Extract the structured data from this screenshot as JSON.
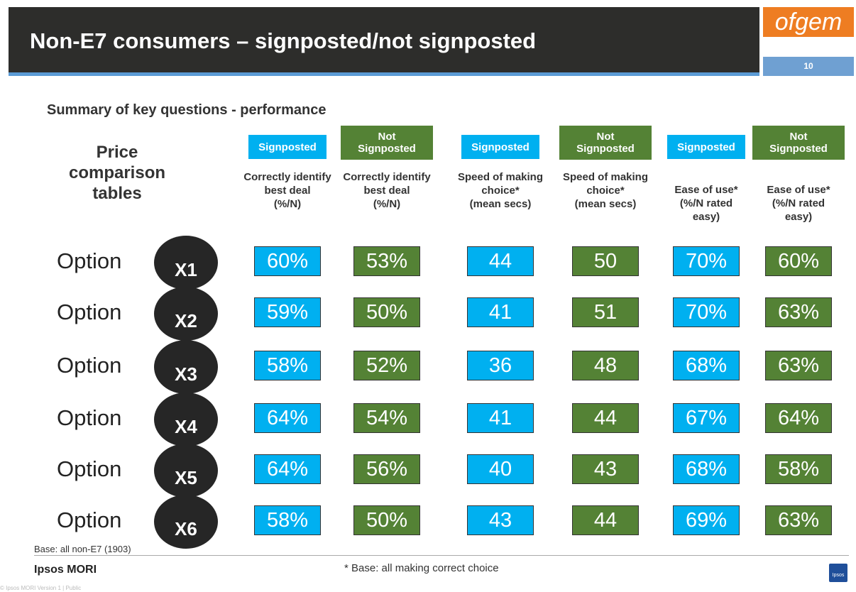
{
  "header": {
    "title": "Non-E7 consumers – signposted/not signposted",
    "logo": "ofgem",
    "page_number": "10"
  },
  "subtitle": "Summary of key questions - performance",
  "table": {
    "row_header": "Price\ncomparison\ntables",
    "columns": [
      {
        "group": "Signposted",
        "question": "Correctly identify\nbest deal\n(%/N)"
      },
      {
        "group": "Not\nSignposted",
        "question": "Correctly identify\nbest deal\n(%/N)"
      },
      {
        "group": "Signposted",
        "question": "Speed of making\nchoice*\n(mean secs)"
      },
      {
        "group": "Not\nSignposted",
        "question": "Speed of making\nchoice*\n(mean secs)"
      },
      {
        "group": "Signposted",
        "question": "Ease of use*\n(%/N rated\neasy)"
      },
      {
        "group": "Not\nSignposted",
        "question": "Ease of use*\n(%/N rated\neasy)"
      }
    ],
    "rows": [
      {
        "label": "Option",
        "option": "X1",
        "cells": [
          "60%",
          "53%",
          "44",
          "50",
          "70%",
          "60%"
        ]
      },
      {
        "label": "Option",
        "option": "X2",
        "cells": [
          "59%",
          "50%",
          "41",
          "51",
          "70%",
          "63%"
        ]
      },
      {
        "label": "Option",
        "option": "X3",
        "cells": [
          "58%",
          "52%",
          "36",
          "48",
          "68%",
          "63%"
        ]
      },
      {
        "label": "Option",
        "option": "X4",
        "cells": [
          "64%",
          "54%",
          "41",
          "44",
          "67%",
          "64%"
        ]
      },
      {
        "label": "Option",
        "option": "X5",
        "cells": [
          "64%",
          "56%",
          "40",
          "43",
          "68%",
          "58%"
        ]
      },
      {
        "label": "Option",
        "option": "X6",
        "cells": [
          "58%",
          "50%",
          "43",
          "44",
          "69%",
          "63%"
        ]
      }
    ]
  },
  "footer": {
    "base": "Base: all non-E7 (1903)",
    "brand": "Ipsos MORI",
    "note": "* Base: all making correct choice",
    "copyright": "© Ipsos MORI    Version 1 | Public",
    "logo": "Ipsos"
  }
}
